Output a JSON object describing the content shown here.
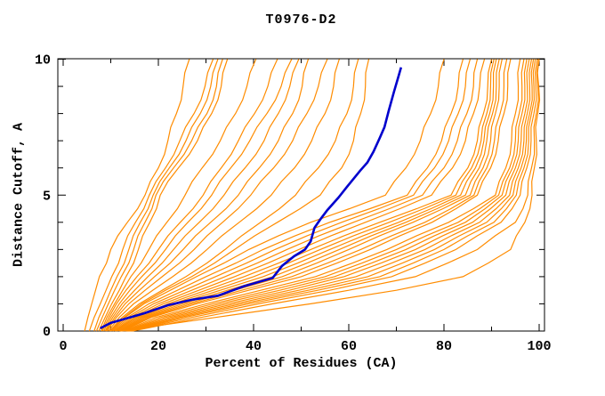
{
  "window": {
    "title": "T0976-D2"
  },
  "chart_data": {
    "type": "line",
    "title": "T0976-D2",
    "xlabel": "Percent of Residues (CA)",
    "ylabel": "Distance Cutoff, A",
    "xlim": [
      0,
      100
    ],
    "ylim": [
      0,
      10
    ],
    "x_ticks_major": [
      0,
      20,
      40,
      60,
      80,
      100
    ],
    "x_ticks_minor_step": 10,
    "y_ticks_major": [
      0,
      5,
      10
    ],
    "y_ticks_minor_step": 1,
    "grid": false,
    "legend": "none",
    "colors": {
      "model_line": "#ff8c00",
      "highlighted_line": "#0000cd",
      "axis": "#000000",
      "background": "#ffffff"
    },
    "description": "Percent of CA residues fit under each distance cutoff; many model curves (orange) and one highlighted model curve (blue).",
    "y_breakpoints": [
      0,
      0.5,
      1,
      1.5,
      2,
      3,
      4,
      5,
      6,
      7,
      8,
      9,
      10
    ],
    "orange_series": [
      {
        "x": [
          4.5,
          5.2,
          6.0,
          6.8,
          7.6,
          10.0,
          13.5,
          17.2,
          20.0,
          22.0,
          23.8,
          25.2,
          26.5
        ]
      },
      {
        "x": [
          5.5,
          6.5,
          7.8,
          9.0,
          10.2,
          12.5,
          15.2,
          18.1,
          21.5,
          24.5,
          27.5,
          29.8,
          31.5
        ]
      },
      {
        "x": [
          6.5,
          7.5,
          8.8,
          10.0,
          11.3,
          13.8,
          16.2,
          18.9,
          22.3,
          25.8,
          28.8,
          31.0,
          32.5
        ]
      },
      {
        "x": [
          7.0,
          8.2,
          9.5,
          10.8,
          12.2,
          14.8,
          17.2,
          19.5,
          23.2,
          27.0,
          30.2,
          32.2,
          33.5
        ]
      },
      {
        "x": [
          7.5,
          8.8,
          10.2,
          11.8,
          13.2,
          15.8,
          18.2,
          20.4,
          24.2,
          28.2,
          31.2,
          33.2,
          34.5
        ]
      },
      {
        "x": [
          8.0,
          9.2,
          10.8,
          12.5,
          14.2,
          18.0,
          21.8,
          25.6,
          29.2,
          33.0,
          36.2,
          38.6,
          40.5
        ]
      },
      {
        "x": [
          8.2,
          9.6,
          11.2,
          13.2,
          15.5,
          20.0,
          24.6,
          29.4,
          33.2,
          36.8,
          40.2,
          43.0,
          45.0
        ]
      },
      {
        "x": [
          8.5,
          10.0,
          11.8,
          14.0,
          16.5,
          21.5,
          26.2,
          31.2,
          35.2,
          39.2,
          42.8,
          45.8,
          48.0
        ]
      },
      {
        "x": [
          8.8,
          10.4,
          12.4,
          15.0,
          17.8,
          23.2,
          28.6,
          33.8,
          38.2,
          42.2,
          45.2,
          47.6,
          49.5
        ]
      },
      {
        "x": [
          9.0,
          10.8,
          13.0,
          16.0,
          19.2,
          25.2,
          31.0,
          36.8,
          41.2,
          45.2,
          48.2,
          50.2,
          51.5
        ]
      },
      {
        "x": [
          9.2,
          11.2,
          13.8,
          17.2,
          20.8,
          27.5,
          33.5,
          39.4,
          44.2,
          48.2,
          51.2,
          53.6,
          55.5
        ]
      },
      {
        "x": [
          9.5,
          11.8,
          14.8,
          18.8,
          23.0,
          30.2,
          37.0,
          43.7,
          48.6,
          52.2,
          55.0,
          56.8,
          58.0
        ]
      },
      {
        "x": [
          9.8,
          12.4,
          16.0,
          20.8,
          25.8,
          34.0,
          41.5,
          48.8,
          53.6,
          57.2,
          59.6,
          61.0,
          62.0
        ]
      },
      {
        "x": [
          9.9,
          12.8,
          16.5,
          21.5,
          27.0,
          36.0,
          45.0,
          54.0,
          58.5,
          61.0,
          62.5,
          63.5,
          64.2
        ]
      },
      {
        "x": [
          10.0,
          13.0,
          17.0,
          22.5,
          28.0,
          39.0,
          52.0,
          67.7,
          72.0,
          75.0,
          77.2,
          78.8,
          80.0
        ]
      },
      {
        "x": [
          10.2,
          13.5,
          18.0,
          24.0,
          30.0,
          42.0,
          56.0,
          72.3,
          76.5,
          79.5,
          81.5,
          83.0,
          84.0
        ]
      },
      {
        "x": [
          10.5,
          14.0,
          19.0,
          25.5,
          32.0,
          44.5,
          58.5,
          73.6,
          78.0,
          81.0,
          83.0,
          84.5,
          85.5
        ]
      },
      {
        "x": [
          10.8,
          14.5,
          20.0,
          27.0,
          34.0,
          47.0,
          61.0,
          75.5,
          80.0,
          82.8,
          84.8,
          86.2,
          87.0
        ]
      },
      {
        "x": [
          11.0,
          15.0,
          21.0,
          28.5,
          36.0,
          49.5,
          63.5,
          77.4,
          81.8,
          84.5,
          86.2,
          87.5,
          88.5
        ]
      },
      {
        "x": [
          11.2,
          15.5,
          22.0,
          30.0,
          38.0,
          52.0,
          66.5,
          81.5,
          85.0,
          87.0,
          88.3,
          89.2,
          90.0
        ]
      },
      {
        "x": [
          11.5,
          16.0,
          23.0,
          31.5,
          40.0,
          54.0,
          68.5,
          82.5,
          85.8,
          87.8,
          89.0,
          89.8,
          90.5
        ]
      },
      {
        "x": [
          11.8,
          16.5,
          24.0,
          33.0,
          42.0,
          56.0,
          70.5,
          83.5,
          86.6,
          88.4,
          89.6,
          90.4,
          91.0
        ]
      },
      {
        "x": [
          12.0,
          17.0,
          25.0,
          34.5,
          44.0,
          58.0,
          72.0,
          84.5,
          87.4,
          89.0,
          90.2,
          91.0,
          91.6
        ]
      },
      {
        "x": [
          12.2,
          17.5,
          26.0,
          36.0,
          46.0,
          60.0,
          73.5,
          85.5,
          88.2,
          89.8,
          90.8,
          91.6,
          92.2
        ]
      },
      {
        "x": [
          12.4,
          18.0,
          27.0,
          37.5,
          48.0,
          62.5,
          76.0,
          86.3,
          89.0,
          90.6,
          91.8,
          92.6,
          93.2
        ]
      },
      {
        "x": [
          12.6,
          18.5,
          28.0,
          39.0,
          50.0,
          64.5,
          77.5,
          87.0,
          89.8,
          91.4,
          92.6,
          93.4,
          94.0
        ]
      },
      {
        "x": [
          12.8,
          19.5,
          30.0,
          41.5,
          53.0,
          68.0,
          81.0,
          90.8,
          93.0,
          94.2,
          95.0,
          95.6,
          96.0
        ]
      },
      {
        "x": [
          13.0,
          20.5,
          31.5,
          43.5,
          55.0,
          70.0,
          83.0,
          91.5,
          93.8,
          95.0,
          95.8,
          96.4,
          96.8
        ]
      },
      {
        "x": [
          13.2,
          21.5,
          33.0,
          45.5,
          57.0,
          72.0,
          84.5,
          92.2,
          94.4,
          95.6,
          96.4,
          97.0,
          97.4
        ]
      },
      {
        "x": [
          13.4,
          22.5,
          34.5,
          47.5,
          59.0,
          74.0,
          86.0,
          93.0,
          95.0,
          96.2,
          97.0,
          97.5,
          97.9
        ]
      },
      {
        "x": [
          13.6,
          23.5,
          36.0,
          49.5,
          61.5,
          76.0,
          87.5,
          93.8,
          95.6,
          96.8,
          97.5,
          98.0,
          98.4
        ]
      },
      {
        "x": [
          13.8,
          24.5,
          37.5,
          51.5,
          64.0,
          78.0,
          89.0,
          94.5,
          96.2,
          97.3,
          98.0,
          98.5,
          98.8
        ]
      },
      {
        "x": [
          14.0,
          25.5,
          39.0,
          53.5,
          66.5,
          80.0,
          90.5,
          95.2,
          96.8,
          97.8,
          98.4,
          98.9,
          99.2
        ]
      },
      {
        "x": [
          14.2,
          27.0,
          41.0,
          56.0,
          69.0,
          82.5,
          92.0,
          96.0,
          97.4,
          98.3,
          98.9,
          99.3,
          99.6
        ]
      },
      {
        "x": [
          14.5,
          29.0,
          44.0,
          60.0,
          74.0,
          87.0,
          95.0,
          97.6,
          98.4,
          99.0,
          99.4,
          99.7,
          99.9
        ]
      },
      {
        "x": [
          12.0,
          32.0,
          52.0,
          70.0,
          84.0,
          94.0,
          97.0,
          98.5,
          99.0,
          99.4,
          99.7,
          99.9,
          100.0
        ]
      }
    ],
    "blue_series": {
      "name": "highlighted-model",
      "points": [
        [
          7.8,
          0.1
        ],
        [
          10,
          0.3
        ],
        [
          13,
          0.45
        ],
        [
          17,
          0.65
        ],
        [
          22,
          0.95
        ],
        [
          27,
          1.15
        ],
        [
          32.5,
          1.3
        ],
        [
          38,
          1.65
        ],
        [
          44,
          1.95
        ],
        [
          46,
          2.4
        ],
        [
          48.5,
          2.75
        ],
        [
          50.8,
          3.0
        ],
        [
          52,
          3.3
        ],
        [
          52.8,
          3.8
        ],
        [
          54,
          4.1
        ],
        [
          55.5,
          4.45
        ],
        [
          57.8,
          4.9
        ],
        [
          59.6,
          5.3
        ],
        [
          62.4,
          5.9
        ],
        [
          63.9,
          6.2
        ],
        [
          65.2,
          6.6
        ],
        [
          66.5,
          7.1
        ],
        [
          67.5,
          7.5
        ],
        [
          68.4,
          8.1
        ],
        [
          69.5,
          8.8
        ],
        [
          70.5,
          9.4
        ],
        [
          71,
          9.7
        ]
      ]
    }
  }
}
